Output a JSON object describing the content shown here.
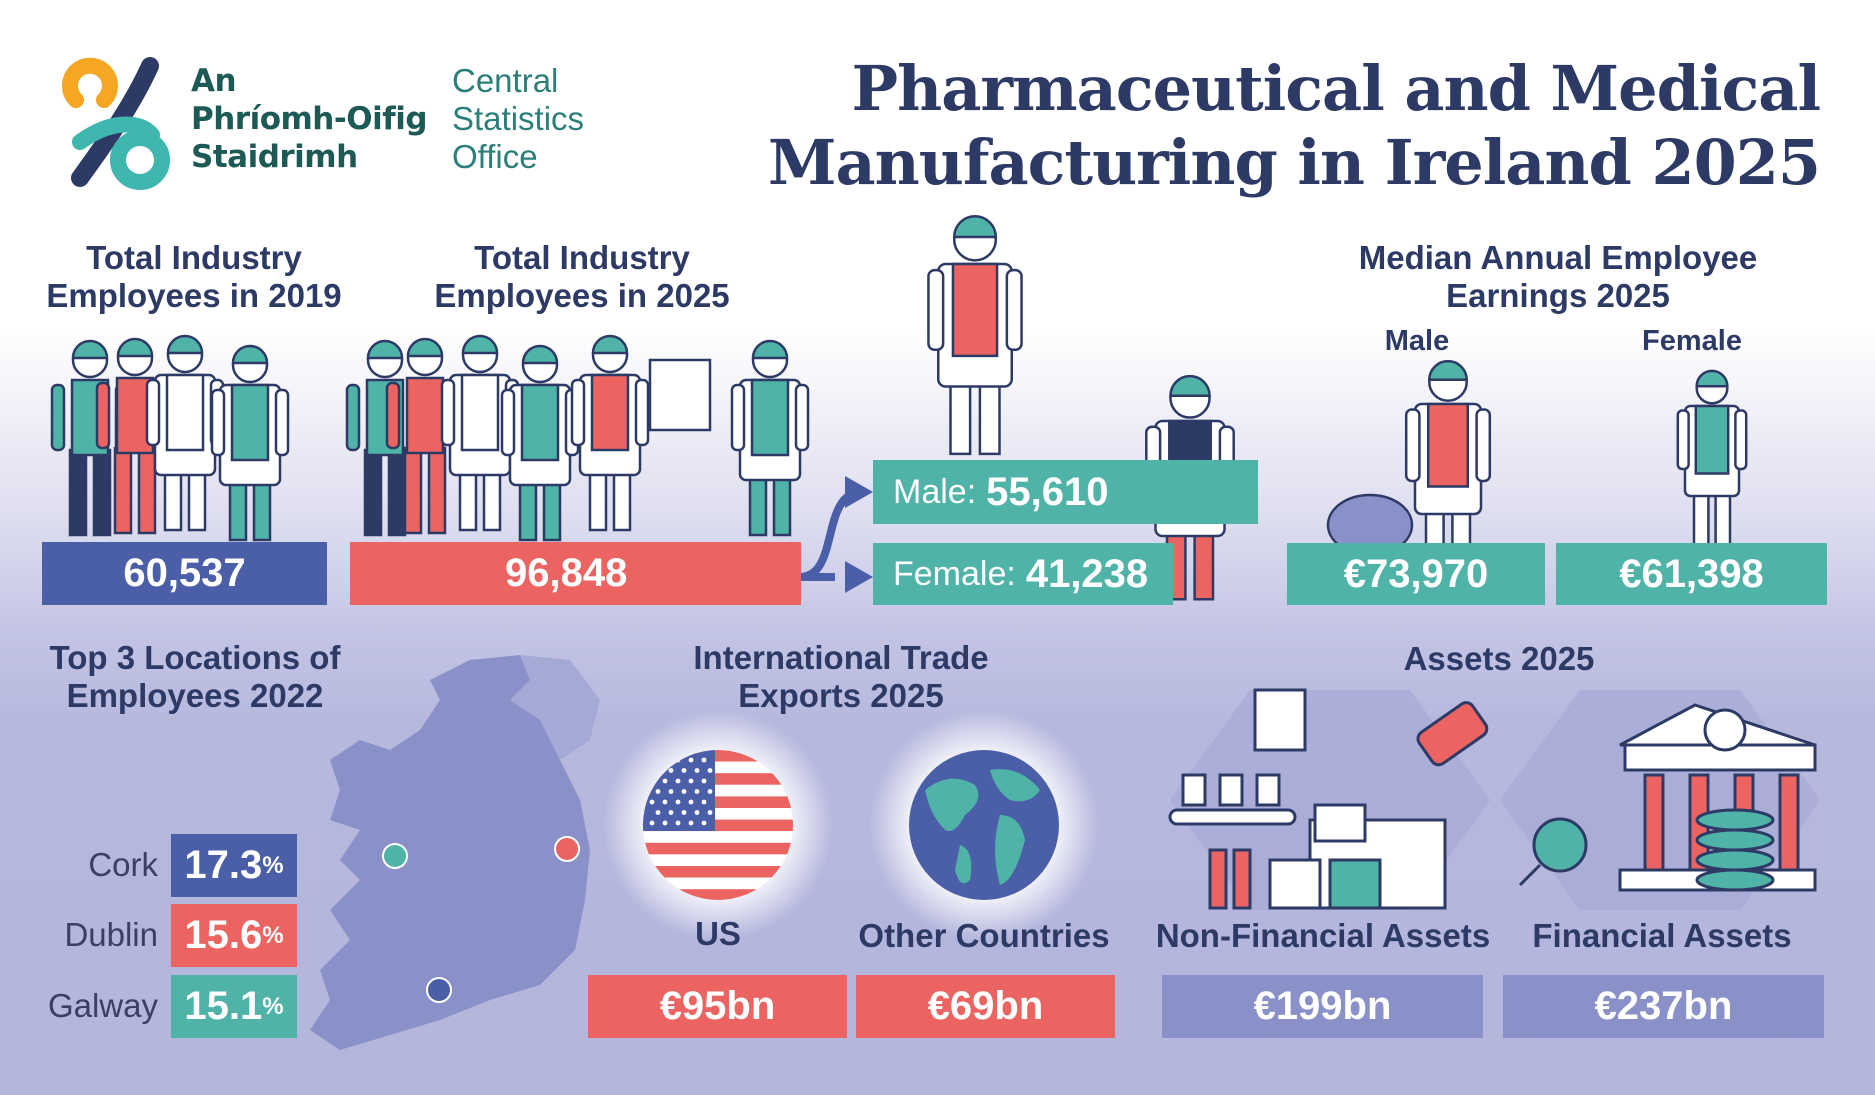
{
  "logo": {
    "irish": [
      "An",
      "Phríomh-Oifig",
      "Staidrimh"
    ],
    "english": [
      "Central",
      "Statistics",
      "Office"
    ]
  },
  "title": [
    "Pharmaceutical and Medical",
    "Manufacturing in Ireland 2025"
  ],
  "employees_2019": {
    "label": [
      "Total Industry",
      "Employees in 2019"
    ],
    "value": "60,537"
  },
  "employees_2025": {
    "label": [
      "Total Industry",
      "Employees in 2025"
    ],
    "value": "96,848"
  },
  "gender": [
    {
      "label": "Male:",
      "value": "55,610"
    },
    {
      "label": "Female:",
      "value": "41,238"
    }
  ],
  "earnings": {
    "title": [
      "Median Annual Employee",
      "Earnings 2025"
    ],
    "items": [
      {
        "label": "Male",
        "value": "€73,970"
      },
      {
        "label": "Female",
        "value": "€61,398"
      }
    ]
  },
  "locations": {
    "title": [
      "Top 3 Locations of",
      "Employees 2022"
    ],
    "items": [
      {
        "name": "Cork",
        "value": 17.3,
        "unit": "%"
      },
      {
        "name": "Dublin",
        "value": 15.6,
        "unit": "%"
      },
      {
        "name": "Galway",
        "value": 15.1,
        "unit": "%"
      }
    ]
  },
  "exports": {
    "title": [
      "International Trade",
      "Exports 2025"
    ],
    "items": [
      {
        "label": "US",
        "value": "€95bn"
      },
      {
        "label": "Other Countries",
        "value": "€69bn"
      }
    ]
  },
  "assets": {
    "title": [
      "Assets 2025"
    ],
    "items": [
      {
        "label": "Non-Financial Assets",
        "value": "€199bn"
      },
      {
        "label": "Financial Assets",
        "value": "€237bn"
      }
    ]
  }
}
